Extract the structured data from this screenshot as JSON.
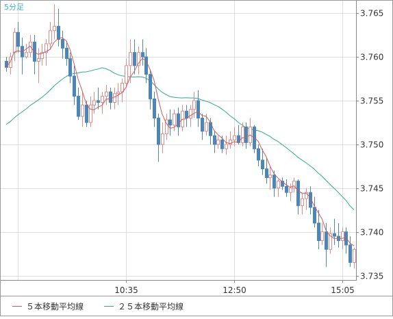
{
  "chart_data": {
    "type": "candlestick",
    "title": "5分足",
    "y_ticks": [
      "3.765",
      "3.760",
      "3.755",
      "3.750",
      "3.745",
      "3.740",
      "3.735"
    ],
    "x_ticks": [
      "10:35",
      "12:50",
      "15:05"
    ],
    "ylim": [
      3.7345,
      3.7665
    ],
    "grid": true,
    "legend": {
      "position": "bottom-left"
    },
    "series": [
      {
        "name": "５本移動平均線",
        "color": "#cc5a5a"
      },
      {
        "name": "２５本移動平均線",
        "color": "#2fa98c"
      }
    ],
    "colors": {
      "up": "#ffffff",
      "up_border": "#e08a8a",
      "down": "#4a86b8",
      "grid": "#dddddd",
      "title": "#3bb3d9"
    },
    "candles": [
      [
        3.7595,
        3.76,
        3.7583,
        3.7588
      ],
      [
        3.7588,
        3.7605,
        3.758,
        3.76
      ],
      [
        3.7605,
        3.7633,
        3.7595,
        3.7628
      ],
      [
        3.7628,
        3.764,
        3.7605,
        3.7612
      ],
      [
        3.7612,
        3.7622,
        3.758,
        3.76
      ],
      [
        3.76,
        3.7615,
        3.7598,
        3.7605
      ],
      [
        3.7605,
        3.7625,
        3.76,
        3.7617
      ],
      [
        3.7617,
        3.7625,
        3.758,
        3.7595
      ],
      [
        3.7595,
        3.761,
        3.757,
        3.7598
      ],
      [
        3.7598,
        3.7615,
        3.759,
        3.7605
      ],
      [
        3.7605,
        3.762,
        3.759,
        3.7615
      ],
      [
        3.7615,
        3.764,
        3.7608,
        3.763
      ],
      [
        3.763,
        3.766,
        3.762,
        3.7635
      ],
      [
        3.7635,
        3.7655,
        3.7612,
        3.762
      ],
      [
        3.762,
        3.763,
        3.7598,
        3.761
      ],
      [
        3.761,
        3.7618,
        3.759,
        3.7598
      ],
      [
        3.7598,
        3.7605,
        3.757,
        3.7578
      ],
      [
        3.7578,
        3.759,
        3.7545,
        3.7555
      ],
      [
        3.7555,
        3.7565,
        3.7528,
        3.7532
      ],
      [
        3.7532,
        3.756,
        3.752,
        3.7545
      ],
      [
        3.7545,
        3.755,
        3.752,
        3.7525
      ],
      [
        3.7525,
        3.7555,
        3.752,
        3.7545
      ],
      [
        3.7545,
        3.756,
        3.7535,
        3.755
      ],
      [
        3.755,
        3.7565,
        3.754,
        3.7548
      ],
      [
        3.7548,
        3.756,
        3.7535,
        3.7555
      ],
      [
        3.7555,
        3.7568,
        3.7545,
        3.756
      ],
      [
        3.756,
        3.7565,
        3.754,
        3.7548
      ],
      [
        3.7548,
        3.7565,
        3.754,
        3.7558
      ],
      [
        3.7558,
        3.757,
        3.7545,
        3.756
      ],
      [
        3.756,
        3.7575,
        3.7548,
        3.757
      ],
      [
        3.757,
        3.7598,
        3.7565,
        3.759
      ],
      [
        3.759,
        3.762,
        3.757,
        3.7605
      ],
      [
        3.7605,
        3.762,
        3.758,
        3.759
      ],
      [
        3.759,
        3.7612,
        3.758,
        3.7605
      ],
      [
        3.7605,
        3.762,
        3.759,
        3.76
      ],
      [
        3.76,
        3.761,
        3.757,
        3.758
      ],
      [
        3.758,
        3.7585,
        3.754,
        3.7552
      ],
      [
        3.7552,
        3.756,
        3.752,
        3.753
      ],
      [
        3.753,
        3.7535,
        3.748,
        3.75
      ],
      [
        3.75,
        3.7525,
        3.749,
        3.7512
      ],
      [
        3.7512,
        3.7535,
        3.7505,
        3.7528
      ],
      [
        3.7528,
        3.754,
        3.751,
        3.7522
      ],
      [
        3.7522,
        3.754,
        3.7515,
        3.7535
      ],
      [
        3.7535,
        3.7542,
        3.751,
        3.752
      ],
      [
        3.752,
        3.7545,
        3.7515,
        3.7538
      ],
      [
        3.7538,
        3.7545,
        3.752,
        3.753
      ],
      [
        3.753,
        3.7545,
        3.752,
        3.754
      ],
      [
        3.754,
        3.756,
        3.753,
        3.755
      ],
      [
        3.755,
        3.7562,
        3.752,
        3.753
      ],
      [
        3.753,
        3.7535,
        3.7505,
        3.7515
      ],
      [
        3.7515,
        3.7535,
        3.751,
        3.7525
      ],
      [
        3.7525,
        3.753,
        3.75,
        3.751
      ],
      [
        3.751,
        3.7515,
        3.749,
        3.75
      ],
      [
        3.75,
        3.751,
        3.7495,
        3.7505
      ],
      [
        3.7505,
        3.751,
        3.749,
        3.7495
      ],
      [
        3.7495,
        3.751,
        3.7488,
        3.75
      ],
      [
        3.75,
        3.7515,
        3.7495,
        3.7505
      ],
      [
        3.7505,
        3.752,
        3.7498,
        3.751
      ],
      [
        3.751,
        3.7522,
        3.75,
        3.7502
      ],
      [
        3.7502,
        3.7525,
        3.7498,
        3.752
      ],
      [
        3.752,
        3.7525,
        3.7495,
        3.7502
      ],
      [
        3.7502,
        3.753,
        3.7498,
        3.752
      ],
      [
        3.752,
        3.7522,
        3.749,
        3.7495
      ],
      [
        3.7495,
        3.75,
        3.7475,
        3.7482
      ],
      [
        3.7482,
        3.7495,
        3.7465,
        3.7472
      ],
      [
        3.7472,
        3.7485,
        3.7455,
        3.7462
      ],
      [
        3.7462,
        3.7475,
        3.7448,
        3.7465
      ],
      [
        3.7465,
        3.747,
        3.744,
        3.745
      ],
      [
        3.745,
        3.746,
        3.744,
        3.7458
      ],
      [
        3.7458,
        3.7462,
        3.7448,
        3.7452
      ],
      [
        3.7452,
        3.746,
        3.744,
        3.7445
      ],
      [
        3.7445,
        3.7455,
        3.7435,
        3.745
      ],
      [
        3.745,
        3.7462,
        3.7445,
        3.7458
      ],
      [
        3.7458,
        3.746,
        3.742,
        3.743
      ],
      [
        3.743,
        3.7445,
        3.742,
        3.7438
      ],
      [
        3.7438,
        3.745,
        3.7425,
        3.7445
      ],
      [
        3.7445,
        3.7452,
        3.742,
        3.7428
      ],
      [
        3.7428,
        3.744,
        3.7405,
        3.741
      ],
      [
        3.741,
        3.7425,
        3.738,
        3.739
      ],
      [
        3.739,
        3.741,
        3.7385,
        3.74
      ],
      [
        3.74,
        3.741,
        3.736,
        3.738
      ],
      [
        3.738,
        3.7405,
        3.7375,
        3.7398
      ],
      [
        3.7398,
        3.7415,
        3.7385,
        3.7395
      ],
      [
        3.7395,
        3.741,
        3.7382,
        3.739
      ],
      [
        3.739,
        3.7405,
        3.738,
        3.74
      ],
      [
        3.74,
        3.7405,
        3.7375,
        3.7385
      ],
      [
        3.7385,
        3.7395,
        3.736,
        3.7365
      ],
      [
        3.7365,
        3.7382,
        3.7358,
        3.738
      ]
    ]
  }
}
